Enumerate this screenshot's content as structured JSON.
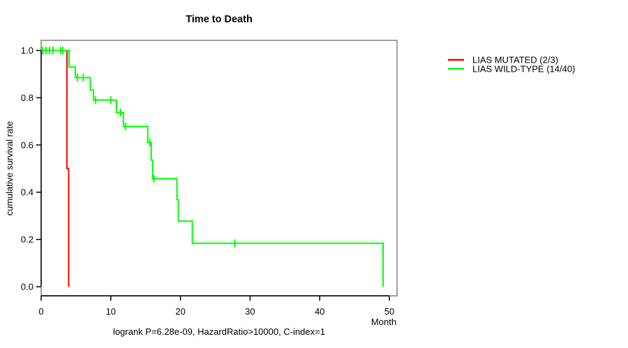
{
  "chart_data": {
    "type": "line",
    "subtype": "kaplan-meier-step",
    "title": "Time to Death",
    "xlabel": "Month",
    "ylabel": "cumulative survival rate",
    "footnote": "logrank P=6.28e-09, HazardRatio>10000, C-index=1",
    "x_ticks": [
      0,
      10,
      20,
      30,
      40,
      50
    ],
    "y_ticks": [
      1.0,
      0.8,
      0.6,
      0.4,
      0.2,
      0.0
    ],
    "xlim": [
      0,
      51
    ],
    "ylim": [
      0,
      1
    ],
    "grid": false,
    "legend_position": "outside-right",
    "frame_color": "#808080",
    "axis_color": "#000000",
    "series": [
      {
        "name": "LIAS MUTATED (2/3)",
        "color": "#ff0000",
        "points": [
          [
            0,
            1.0
          ],
          [
            3.7,
            1.0
          ],
          [
            3.7,
            0.5
          ],
          [
            3.95,
            0.5
          ],
          [
            3.95,
            0.0
          ]
        ],
        "censors": []
      },
      {
        "name": "LIAS WILD-TYPE (14/40)",
        "color": "#00ff00",
        "points": [
          [
            0,
            1.0
          ],
          [
            4.0,
            1.0
          ],
          [
            4.0,
            0.93
          ],
          [
            4.9,
            0.93
          ],
          [
            4.9,
            0.885
          ],
          [
            7.05,
            0.885
          ],
          [
            7.05,
            0.833
          ],
          [
            7.5,
            0.833
          ],
          [
            7.5,
            0.79
          ],
          [
            10.8,
            0.79
          ],
          [
            10.8,
            0.737
          ],
          [
            11.8,
            0.737
          ],
          [
            11.8,
            0.678
          ],
          [
            15.3,
            0.678
          ],
          [
            15.3,
            0.61
          ],
          [
            15.8,
            0.61
          ],
          [
            15.8,
            0.536
          ],
          [
            16.0,
            0.536
          ],
          [
            16.0,
            0.457
          ],
          [
            19.5,
            0.457
          ],
          [
            19.5,
            0.369
          ],
          [
            19.7,
            0.369
          ],
          [
            19.7,
            0.278
          ],
          [
            21.7,
            0.278
          ],
          [
            21.7,
            0.184
          ],
          [
            49.1,
            0.184
          ],
          [
            49.1,
            0.0
          ]
        ],
        "censors": [
          [
            0.2,
            1.0
          ],
          [
            0.7,
            1.0
          ],
          [
            1.2,
            1.0
          ],
          [
            1.7,
            1.0
          ],
          [
            2.8,
            1.0
          ],
          [
            3.1,
            1.0
          ],
          [
            5.2,
            0.885
          ],
          [
            6.05,
            0.885
          ],
          [
            7.8,
            0.79
          ],
          [
            10.0,
            0.79
          ],
          [
            11.4,
            0.737
          ],
          [
            12.1,
            0.678
          ],
          [
            15.6,
            0.61
          ],
          [
            16.2,
            0.457
          ],
          [
            27.8,
            0.184
          ]
        ]
      }
    ]
  },
  "legend": {
    "items": [
      {
        "label": "LIAS MUTATED (2/3)",
        "color": "#ff0000"
      },
      {
        "label": "LIAS WILD-TYPE (14/40)",
        "color": "#00ff00"
      }
    ]
  }
}
